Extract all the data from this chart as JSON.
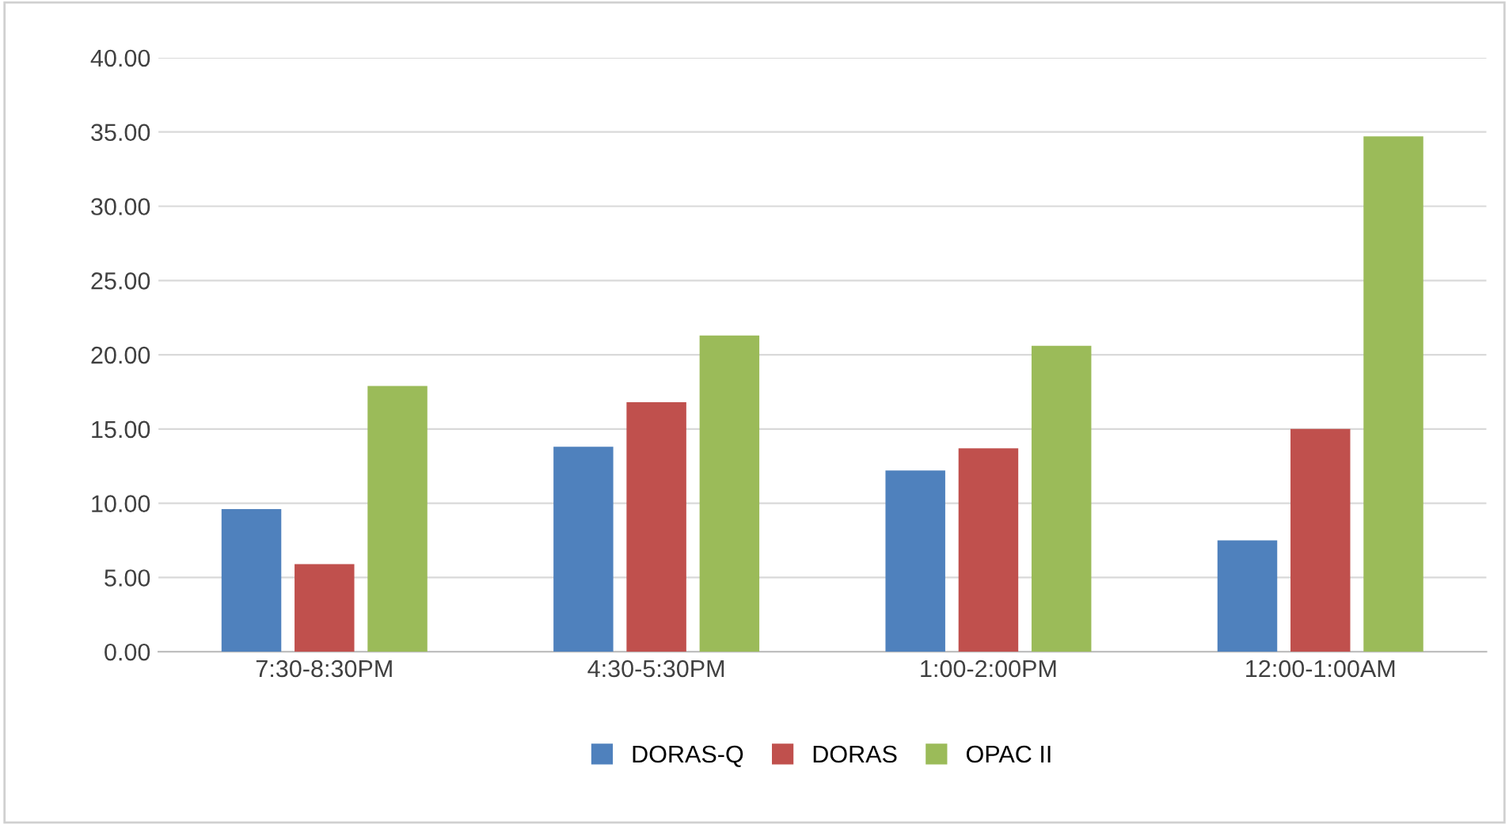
{
  "chart_data": {
    "type": "bar",
    "categories": [
      "7:30-8:30PM",
      "4:30-5:30PM",
      "1:00-2:00PM",
      "12:00-1:00AM"
    ],
    "series": [
      {
        "name": "DORAS-Q",
        "color": "#4f81bd",
        "values": [
          9.6,
          13.8,
          12.2,
          7.5
        ]
      },
      {
        "name": "DORAS",
        "color": "#c0504d",
        "values": [
          5.9,
          16.8,
          13.7,
          15.0
        ]
      },
      {
        "name": "OPAC II",
        "color": "#9bbb59",
        "values": [
          17.9,
          21.3,
          20.6,
          34.7
        ]
      }
    ],
    "ylim": [
      0,
      40
    ],
    "yticks": [
      {
        "value": 0,
        "label": "0.00"
      },
      {
        "value": 5,
        "label": "5.00"
      },
      {
        "value": 10,
        "label": "10.00"
      },
      {
        "value": 15,
        "label": "15.00"
      },
      {
        "value": 20,
        "label": "20.00"
      },
      {
        "value": 25,
        "label": "25.00"
      },
      {
        "value": 30,
        "label": "30.00"
      },
      {
        "value": 35,
        "label": "35.00"
      },
      {
        "value": 40,
        "label": "40.00"
      }
    ],
    "grid": "y",
    "legend": "bottom"
  }
}
